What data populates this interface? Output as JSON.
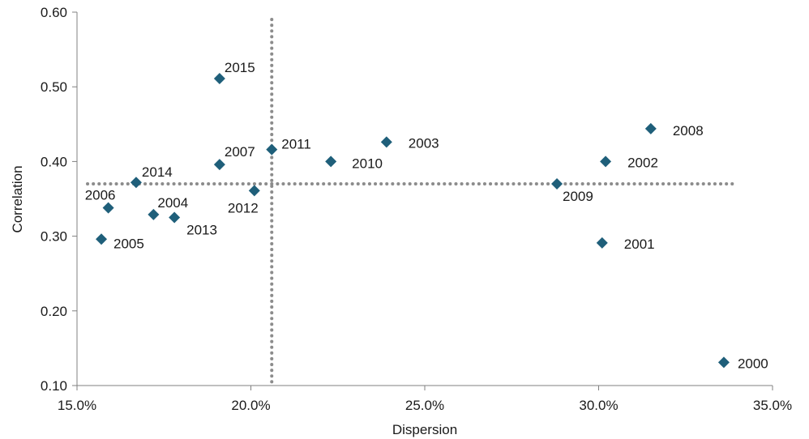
{
  "chart_data": {
    "type": "scatter",
    "xlabel": "Dispersion",
    "ylabel": "Correlation",
    "xlim": [
      0.15,
      0.35
    ],
    "ylim": [
      0.1,
      0.6
    ],
    "x_ticks": [
      0.15,
      0.2,
      0.25,
      0.3,
      0.35
    ],
    "x_tick_labels": [
      "15.0%",
      "20.0%",
      "25.0%",
      "30.0%",
      "35.0%"
    ],
    "y_ticks": [
      0.1,
      0.2,
      0.3,
      0.4,
      0.5,
      0.6
    ],
    "y_tick_labels": [
      "0.10",
      "0.20",
      "0.30",
      "0.40",
      "0.50",
      "0.60"
    ],
    "grid": false,
    "marker": "diamond",
    "marker_color": "#1f5f7a",
    "reference_line_color": "#8c8c8c",
    "reference_lines": {
      "x": 0.206,
      "y": 0.37
    },
    "points": [
      {
        "label": "2000",
        "x": 0.336,
        "y": 0.131
      },
      {
        "label": "2001",
        "x": 0.301,
        "y": 0.291
      },
      {
        "label": "2002",
        "x": 0.302,
        "y": 0.4
      },
      {
        "label": "2003",
        "x": 0.239,
        "y": 0.426
      },
      {
        "label": "2004",
        "x": 0.172,
        "y": 0.329
      },
      {
        "label": "2005",
        "x": 0.157,
        "y": 0.296
      },
      {
        "label": "2006",
        "x": 0.159,
        "y": 0.338
      },
      {
        "label": "2007",
        "x": 0.191,
        "y": 0.396
      },
      {
        "label": "2008",
        "x": 0.315,
        "y": 0.444
      },
      {
        "label": "2009",
        "x": 0.288,
        "y": 0.37
      },
      {
        "label": "2010",
        "x": 0.223,
        "y": 0.4
      },
      {
        "label": "2011",
        "x": 0.206,
        "y": 0.416
      },
      {
        "label": "2012",
        "x": 0.201,
        "y": 0.361
      },
      {
        "label": "2013",
        "x": 0.178,
        "y": 0.325
      },
      {
        "label": "2014",
        "x": 0.167,
        "y": 0.372
      },
      {
        "label": "2015",
        "x": 0.191,
        "y": 0.511
      }
    ]
  }
}
